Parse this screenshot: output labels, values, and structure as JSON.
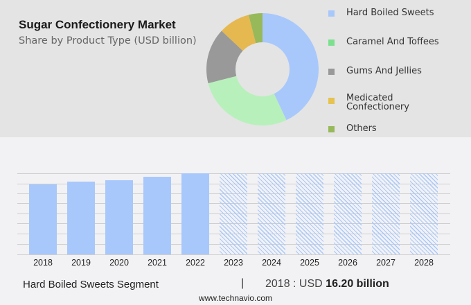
{
  "header": {
    "title": "Sugar Confectionery Market",
    "subtitle": "Share by Product Type (USD billion)"
  },
  "legend": [
    {
      "label": "Hard Boiled Sweets",
      "color": "#a8c8fc"
    },
    {
      "label": "Caramel And Toffees",
      "color": "#7ce08f"
    },
    {
      "label": "Gums And Jellies",
      "color": "#999999"
    },
    {
      "label": "Medicated Confectionery",
      "color": "#e6c350"
    },
    {
      "label": "Others",
      "color": "#98b95a"
    }
  ],
  "footer": {
    "segment_label": "Hard Boiled Sweets Segment",
    "divider": "|",
    "value_prefix": "2018 : USD",
    "value_bold": "16.20 billion",
    "url": "www.technavio.com"
  },
  "chart_data": [
    {
      "type": "pie",
      "subtype": "donut",
      "title": "Sugar Confectionery Market",
      "subtitle": "Share by Product Type (USD billion)",
      "labels": [
        "Hard Boiled Sweets",
        "Caramel And Toffees",
        "Gums And Jellies",
        "Medicated Confectionery",
        "Others"
      ],
      "values": [
        43,
        28,
        16,
        9,
        4
      ],
      "colors": [
        "#a8c8fc",
        "#b8f0bc",
        "#999999",
        "#e6b850",
        "#98b95a"
      ],
      "legend_position": "right"
    },
    {
      "type": "bar",
      "title": "Hard Boiled Sweets Segment",
      "categories": [
        "2018",
        "2019",
        "2020",
        "2021",
        "2022",
        "2023",
        "2024",
        "2025",
        "2026",
        "2027",
        "2028"
      ],
      "series": [
        {
          "name": "Hard Boiled Sweets (actual)",
          "values": [
            16.2,
            16.84,
            17.16,
            17.96,
            18.77,
            null,
            null,
            null,
            null,
            null,
            null
          ]
        },
        {
          "name": "Hard Boiled Sweets (forecast, hatched)",
          "values": [
            null,
            null,
            null,
            null,
            null,
            18.77,
            18.77,
            18.77,
            18.77,
            18.77,
            18.77
          ]
        }
      ],
      "annotation": "2018 : USD 16.20 billion",
      "xlabel": "",
      "ylabel": "",
      "grid": true,
      "yaxis_labels_visible": false,
      "gridline_count": 9
    }
  ]
}
